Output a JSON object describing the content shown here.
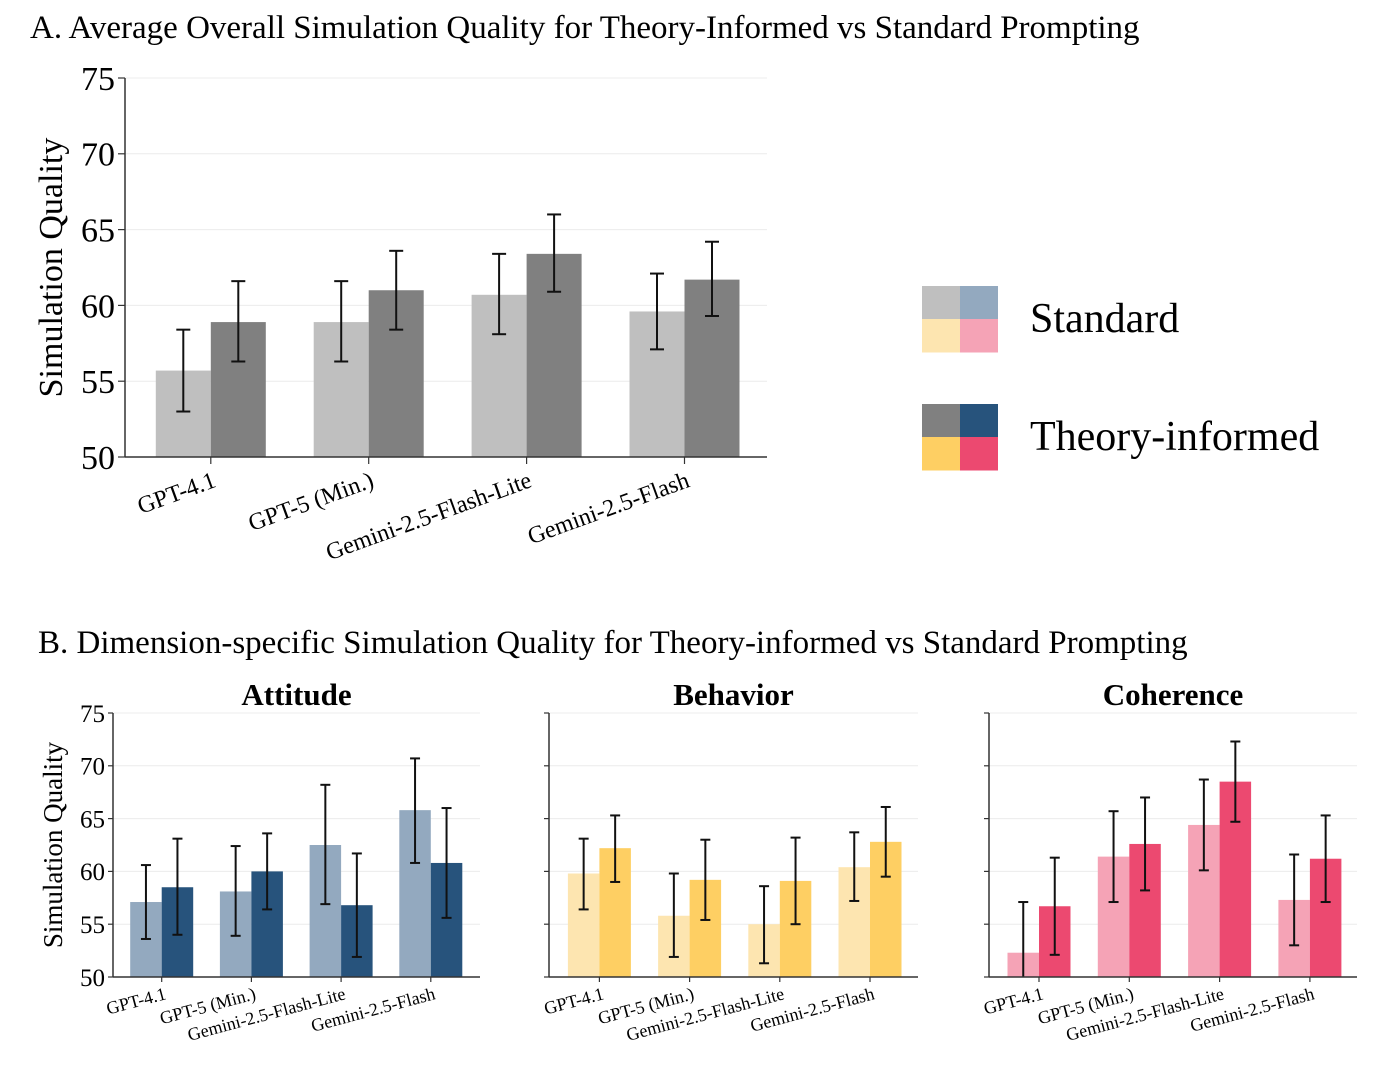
{
  "figure": {
    "panel_a_title": "A. Average Overall Simulation Quality for Theory-Informed vs Standard Prompting",
    "panel_b_title": "B. Dimension-specific Simulation Quality for Theory-informed vs Standard Prompting"
  },
  "legend": {
    "position": "right",
    "entries": [
      {
        "label": "Standard",
        "colors": [
          "#bfbfbf",
          "#93a9bf",
          "#fde5b0",
          "#f5a3b6"
        ]
      },
      {
        "label": "Theory-informed",
        "colors": [
          "#808080",
          "#27537c",
          "#fecf63",
          "#ec4970"
        ]
      }
    ]
  },
  "chart_data": [
    {
      "id": "overall",
      "type": "bar",
      "title": "",
      "xlabel": "",
      "ylabel": "Simulation Quality",
      "ylim": [
        50,
        75
      ],
      "yticks": [
        50,
        55,
        60,
        65,
        70,
        75
      ],
      "grid": true,
      "categories": [
        "GPT-4.1",
        "GPT-5 (Min.)",
        "Gemini-2.5-Flash-Lite",
        "Gemini-2.5-Flash"
      ],
      "series": [
        {
          "name": "Standard",
          "color": "#bfbfbf",
          "values": [
            55.7,
            58.9,
            60.7,
            59.6
          ],
          "err_low": [
            53.0,
            56.3,
            58.1,
            57.1
          ],
          "err_high": [
            58.4,
            61.6,
            63.4,
            62.1
          ]
        },
        {
          "name": "Theory-informed",
          "color": "#808080",
          "values": [
            58.9,
            61.0,
            63.4,
            61.7
          ],
          "err_low": [
            56.3,
            58.4,
            60.9,
            59.3
          ],
          "err_high": [
            61.6,
            63.6,
            66.0,
            64.2
          ]
        }
      ]
    },
    {
      "id": "attitude",
      "type": "bar",
      "title": "Attitude",
      "xlabel": "",
      "ylabel": "Simulation Quality",
      "ylim": [
        50,
        75
      ],
      "yticks": [
        50,
        55,
        60,
        65,
        70,
        75
      ],
      "grid": true,
      "categories": [
        "GPT-4.1",
        "GPT-5 (Min.)",
        "Gemini-2.5-Flash-Lite",
        "Gemini-2.5-Flash"
      ],
      "series": [
        {
          "name": "Standard",
          "color": "#93a9bf",
          "values": [
            57.1,
            58.1,
            62.5,
            65.8
          ],
          "err_low": [
            53.6,
            53.9,
            56.9,
            60.8
          ],
          "err_high": [
            60.6,
            62.4,
            68.2,
            70.7
          ]
        },
        {
          "name": "Theory-informed",
          "color": "#27537c",
          "values": [
            58.5,
            60.0,
            56.8,
            60.8
          ],
          "err_low": [
            54.0,
            56.4,
            51.9,
            55.6
          ],
          "err_high": [
            63.1,
            63.6,
            61.7,
            66.0
          ]
        }
      ]
    },
    {
      "id": "behavior",
      "type": "bar",
      "title": "Behavior",
      "xlabel": "",
      "ylabel": "",
      "ylim": [
        50,
        75
      ],
      "yticks": [
        50,
        55,
        60,
        65,
        70,
        75
      ],
      "grid": true,
      "categories": [
        "GPT-4.1",
        "GPT-5 (Min.)",
        "Gemini-2.5-Flash-Lite",
        "Gemini-2.5-Flash"
      ],
      "series": [
        {
          "name": "Standard",
          "color": "#fde5b0",
          "values": [
            59.8,
            55.8,
            55.0,
            60.4
          ],
          "err_low": [
            56.4,
            51.9,
            51.3,
            57.2
          ],
          "err_high": [
            63.1,
            59.8,
            58.6,
            63.7
          ]
        },
        {
          "name": "Theory-informed",
          "color": "#fecf63",
          "values": [
            62.2,
            59.2,
            59.1,
            62.8
          ],
          "err_low": [
            59.0,
            55.4,
            55.0,
            59.5
          ],
          "err_high": [
            65.3,
            63.0,
            63.2,
            66.1
          ]
        }
      ]
    },
    {
      "id": "coherence",
      "type": "bar",
      "title": "Coherence",
      "xlabel": "",
      "ylabel": "",
      "ylim": [
        50,
        75
      ],
      "yticks": [
        50,
        55,
        60,
        65,
        70,
        75
      ],
      "grid": true,
      "categories": [
        "GPT-4.1",
        "GPT-5 (Min.)",
        "Gemini-2.5-Flash-Lite",
        "Gemini-2.5-Flash"
      ],
      "series": [
        {
          "name": "Standard",
          "color": "#f5a3b6",
          "values": [
            52.3,
            61.4,
            64.4,
            57.3
          ],
          "err_low": [
            47.5,
            57.1,
            60.1,
            53.0
          ],
          "err_high": [
            57.1,
            65.7,
            68.7,
            61.6
          ]
        },
        {
          "name": "Theory-informed",
          "color": "#ec4970",
          "values": [
            56.7,
            62.6,
            68.5,
            61.2
          ],
          "err_low": [
            52.1,
            58.2,
            64.7,
            57.1
          ],
          "err_high": [
            61.3,
            67.0,
            72.3,
            65.3
          ]
        }
      ]
    }
  ]
}
